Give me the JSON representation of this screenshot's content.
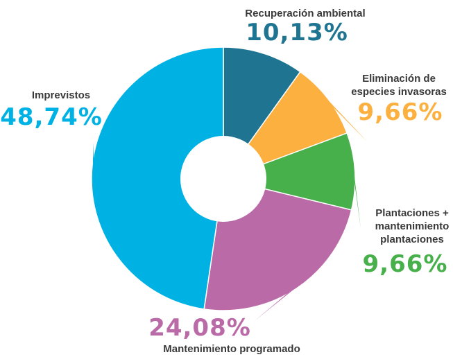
{
  "chart_data": {
    "type": "pie",
    "variant": "donut",
    "title": "",
    "legend": "none",
    "series": [
      {
        "name": "Recuperación ambiental",
        "label_lines": [
          "Recuperación ambiental"
        ],
        "value": 10.13,
        "value_label": "10,13%",
        "color": "#1f7591"
      },
      {
        "name": "Eliminación de especies invasoras",
        "label_lines": [
          "Eliminación de",
          "especies invasoras"
        ],
        "value": 9.66,
        "value_label": "9,66%",
        "color": "#fbb040"
      },
      {
        "name": "Plantaciones + mantenimiento plantaciones",
        "label_lines": [
          "Plantaciones +",
          "mantenimiento",
          "plantaciones"
        ],
        "value": 9.66,
        "value_label": "9,66%",
        "color": "#47b04b"
      },
      {
        "name": "Mantenimiento programado",
        "label_lines": [
          "Mantenimiento programado"
        ],
        "value": 24.08,
        "value_label": "24,08%",
        "color": "#bb6aa8"
      },
      {
        "name": "Imprevistos",
        "label_lines": [
          "Imprevistos"
        ],
        "value": 48.74,
        "value_label": "48,74%",
        "color": "#00b2e3"
      }
    ]
  }
}
